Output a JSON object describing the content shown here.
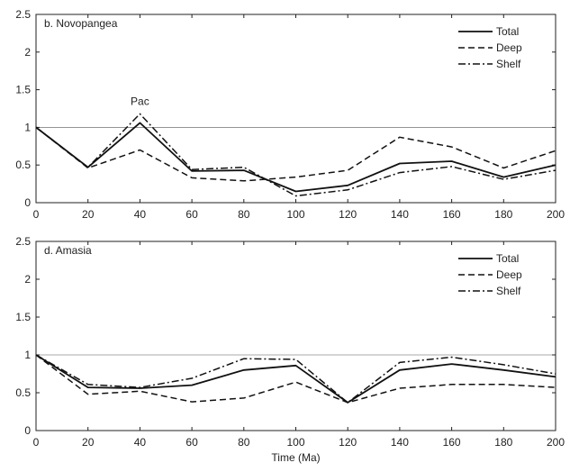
{
  "chart_data": [
    {
      "type": "line",
      "title": "b. Novopangea",
      "xlabel": "",
      "ylabel": "",
      "xlim": [
        0,
        200
      ],
      "ylim": [
        0,
        2.5
      ],
      "xticks": [
        0,
        20,
        40,
        60,
        80,
        100,
        120,
        140,
        160,
        180,
        200
      ],
      "yticks": [
        0,
        0.5,
        1,
        1.5,
        2,
        2.5
      ],
      "legend_position": "top-right",
      "reference_line": 1,
      "x": [
        0,
        20,
        40,
        60,
        80,
        100,
        120,
        140,
        160,
        180,
        200
      ],
      "series": [
        {
          "name": "Total",
          "style": "solid",
          "values": [
            1.0,
            0.47,
            1.06,
            0.42,
            0.43,
            0.15,
            0.23,
            0.52,
            0.55,
            0.34,
            0.5
          ]
        },
        {
          "name": "Deep",
          "style": "dashed",
          "values": [
            1.0,
            0.46,
            0.7,
            0.33,
            0.29,
            0.34,
            0.43,
            0.87,
            0.74,
            0.46,
            0.69
          ]
        },
        {
          "name": "Shelf",
          "style": "dashdot",
          "values": [
            1.0,
            0.47,
            1.18,
            0.44,
            0.47,
            0.09,
            0.17,
            0.4,
            0.48,
            0.31,
            0.43
          ]
        }
      ],
      "annotations": [
        {
          "text": "Pac",
          "x": 40,
          "y": 1.3
        }
      ]
    },
    {
      "type": "line",
      "title": "d. Amasia",
      "xlabel": "Time (Ma)",
      "ylabel": "",
      "xlim": [
        0,
        200
      ],
      "ylim": [
        0,
        2.5
      ],
      "xticks": [
        0,
        20,
        40,
        60,
        80,
        100,
        120,
        140,
        160,
        180,
        200
      ],
      "yticks": [
        0,
        0.5,
        1,
        1.5,
        2,
        2.5
      ],
      "legend_position": "top-right",
      "reference_line": 1,
      "x": [
        0,
        20,
        40,
        60,
        80,
        100,
        120,
        140,
        160,
        180,
        200
      ],
      "series": [
        {
          "name": "Total",
          "style": "solid",
          "values": [
            1.0,
            0.57,
            0.56,
            0.6,
            0.8,
            0.86,
            0.37,
            0.8,
            0.88,
            0.8,
            0.71
          ]
        },
        {
          "name": "Deep",
          "style": "dashed",
          "values": [
            1.0,
            0.48,
            0.52,
            0.38,
            0.43,
            0.64,
            0.37,
            0.56,
            0.61,
            0.61,
            0.57
          ]
        },
        {
          "name": "Shelf",
          "style": "dashdot",
          "values": [
            1.0,
            0.61,
            0.57,
            0.69,
            0.95,
            0.94,
            0.37,
            0.9,
            0.97,
            0.87,
            0.75
          ]
        }
      ],
      "annotations": []
    }
  ]
}
